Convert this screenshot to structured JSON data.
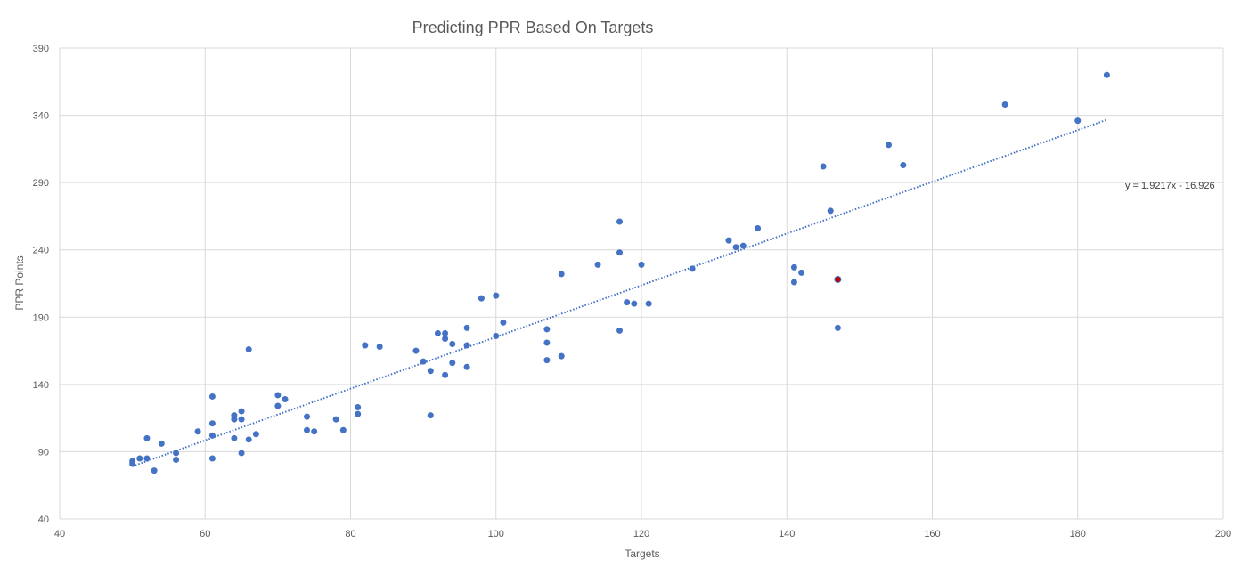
{
  "chart_data": {
    "type": "scatter",
    "title": "Predicting PPR Based On Targets",
    "xlabel": "Targets",
    "ylabel": "PPR Points",
    "xlim": [
      40,
      200
    ],
    "ylim": [
      40,
      390
    ],
    "x_ticks": [
      40,
      60,
      80,
      100,
      120,
      140,
      160,
      180,
      200
    ],
    "y_ticks": [
      40,
      90,
      140,
      190,
      240,
      290,
      340,
      390
    ],
    "grid": true,
    "legend": "none",
    "point_color": "#4472c4",
    "highlight_color": "#c00000",
    "trendline": {
      "slope": 1.9217,
      "intercept": -16.926,
      "x_range": [
        50,
        184
      ],
      "equation_label": "y = 1.9217x - 16.926",
      "style": "dotted",
      "color": "#4472c4"
    },
    "highlight": {
      "x": 147,
      "y": 218
    },
    "points": [
      [
        50,
        81
      ],
      [
        50,
        83
      ],
      [
        51,
        85
      ],
      [
        52,
        85
      ],
      [
        52,
        100
      ],
      [
        53,
        76
      ],
      [
        54,
        96
      ],
      [
        56,
        84
      ],
      [
        56,
        89
      ],
      [
        59,
        105
      ],
      [
        61,
        85
      ],
      [
        61,
        102
      ],
      [
        61,
        111
      ],
      [
        61,
        131
      ],
      [
        64,
        100
      ],
      [
        64,
        114
      ],
      [
        64,
        117
      ],
      [
        65,
        89
      ],
      [
        65,
        114
      ],
      [
        65,
        120
      ],
      [
        66,
        99
      ],
      [
        66,
        166
      ],
      [
        67,
        103
      ],
      [
        70,
        124
      ],
      [
        70,
        132
      ],
      [
        71,
        129
      ],
      [
        74,
        106
      ],
      [
        74,
        116
      ],
      [
        75,
        105
      ],
      [
        78,
        114
      ],
      [
        79,
        106
      ],
      [
        81,
        118
      ],
      [
        81,
        123
      ],
      [
        82,
        169
      ],
      [
        84,
        168
      ],
      [
        89,
        165
      ],
      [
        90,
        157
      ],
      [
        91,
        117
      ],
      [
        91,
        150
      ],
      [
        92,
        178
      ],
      [
        93,
        147
      ],
      [
        93,
        174
      ],
      [
        93,
        178
      ],
      [
        94,
        156
      ],
      [
        94,
        170
      ],
      [
        96,
        153
      ],
      [
        96,
        169
      ],
      [
        96,
        182
      ],
      [
        98,
        204
      ],
      [
        100,
        176
      ],
      [
        100,
        206
      ],
      [
        101,
        186
      ],
      [
        107,
        158
      ],
      [
        107,
        171
      ],
      [
        107,
        181
      ],
      [
        109,
        161
      ],
      [
        109,
        222
      ],
      [
        114,
        229
      ],
      [
        117,
        180
      ],
      [
        117,
        238
      ],
      [
        117,
        261
      ],
      [
        118,
        201
      ],
      [
        119,
        200
      ],
      [
        120,
        229
      ],
      [
        121,
        200
      ],
      [
        127,
        226
      ],
      [
        132,
        247
      ],
      [
        133,
        242
      ],
      [
        134,
        243
      ],
      [
        136,
        256
      ],
      [
        141,
        216
      ],
      [
        141,
        227
      ],
      [
        142,
        223
      ],
      [
        145,
        302
      ],
      [
        146,
        269
      ],
      [
        147,
        182
      ],
      [
        154,
        318
      ],
      [
        156,
        303
      ],
      [
        170,
        348
      ],
      [
        180,
        336
      ],
      [
        184,
        370
      ]
    ]
  }
}
